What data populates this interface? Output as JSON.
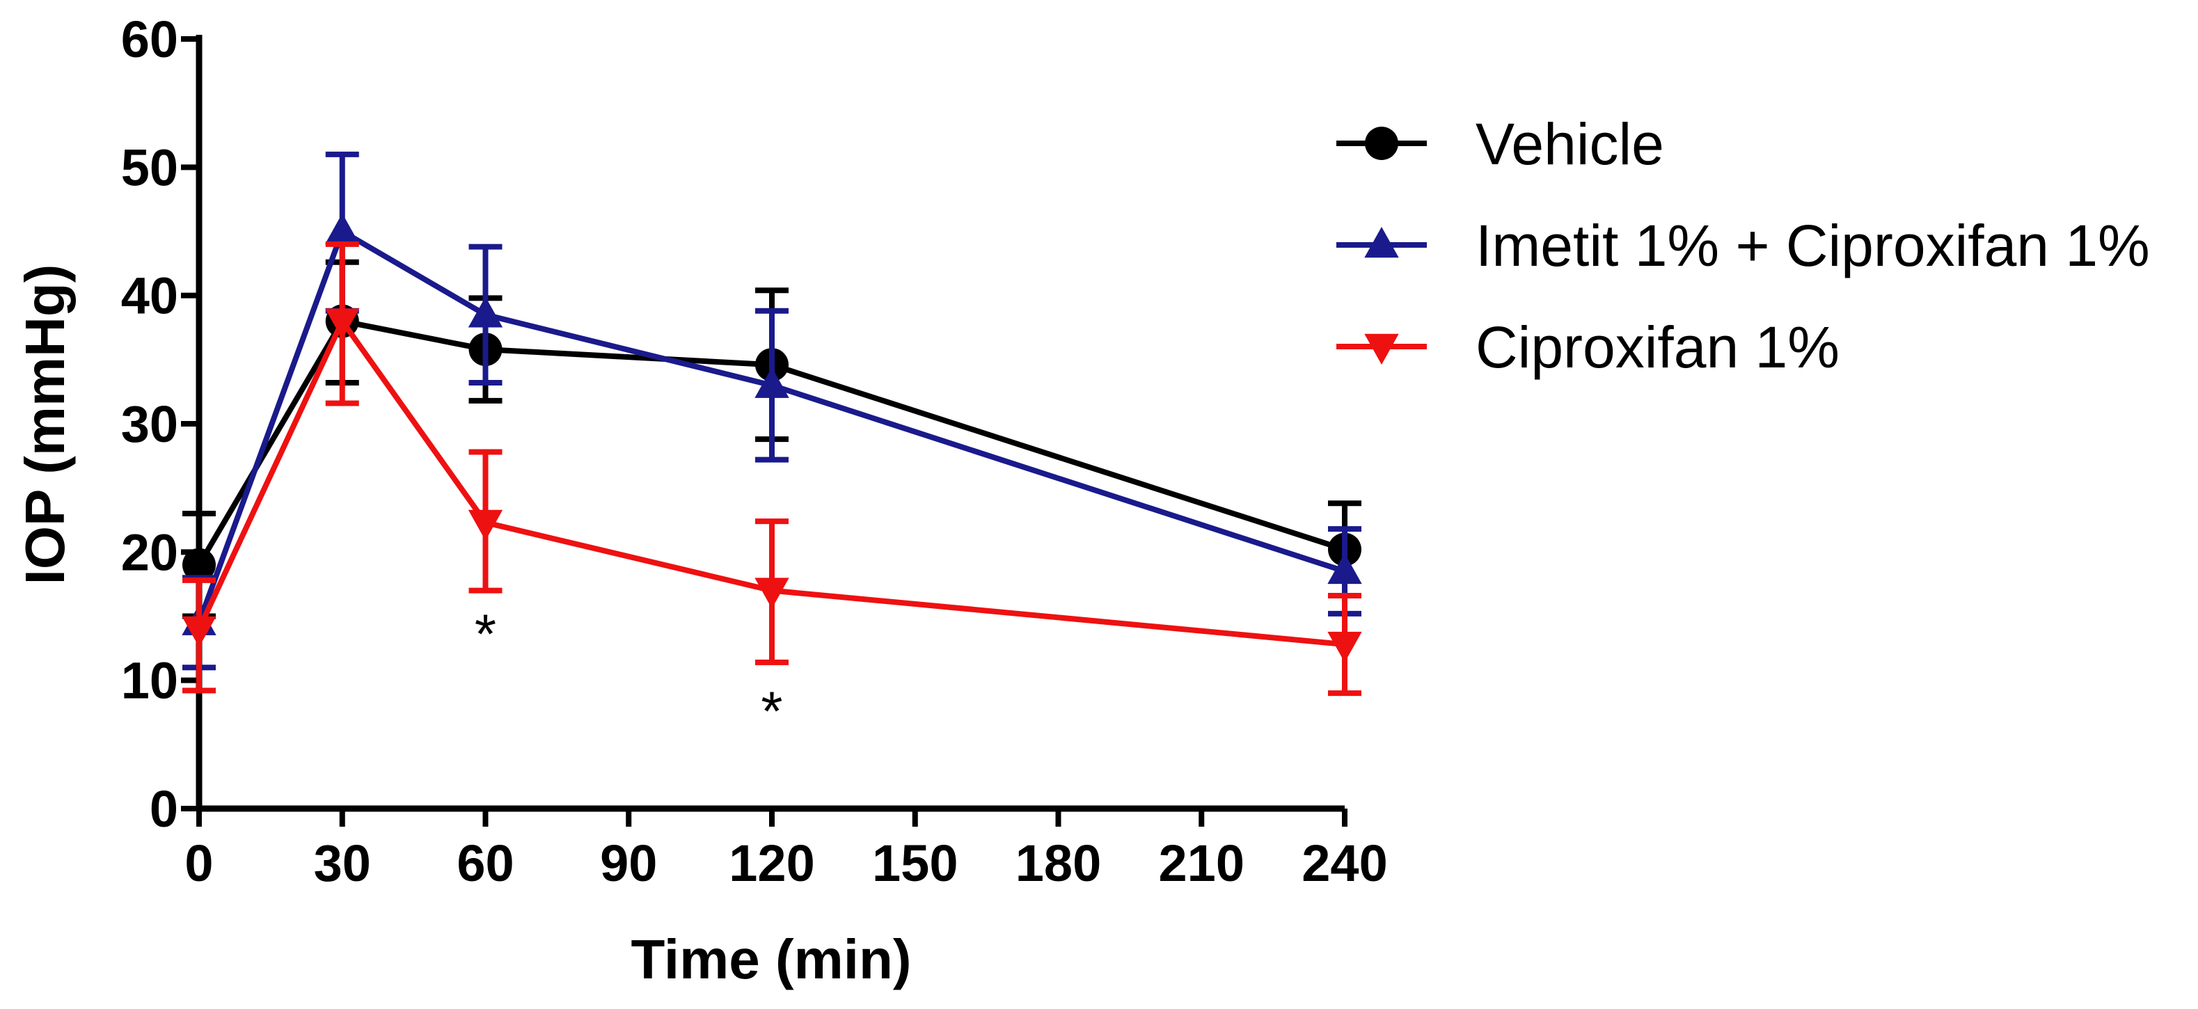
{
  "chart_data": {
    "type": "line",
    "title": "",
    "xlabel": "Time (min)",
    "ylabel": "IOP (mmHg)",
    "xlim": [
      0,
      240
    ],
    "ylim": [
      0,
      60
    ],
    "xticks": [
      0,
      30,
      60,
      90,
      120,
      150,
      180,
      210,
      240
    ],
    "yticks": [
      0,
      10,
      20,
      30,
      40,
      50,
      60
    ],
    "xtick_labels": [
      "0",
      "30",
      "60",
      "90",
      "120",
      "150",
      "180",
      "210",
      "240"
    ],
    "ytick_labels": [
      "0",
      "10",
      "20",
      "30",
      "40",
      "50",
      "60"
    ],
    "x": [
      0,
      30,
      60,
      120,
      240
    ],
    "legend_position": "top-right",
    "grid": false,
    "series": [
      {
        "name": "Vehicle",
        "color": "#000000",
        "marker": "circle",
        "values": [
          19,
          38,
          35.8,
          34.6,
          20.2
        ],
        "err_low": [
          15,
          33.2,
          31.8,
          28.8,
          16.6
        ],
        "err_high": [
          23,
          42.6,
          39.8,
          40.4,
          23.8
        ]
      },
      {
        "name": "Imetit 1% + Ciproxifan 1%",
        "color": "#1a1a8c",
        "marker": "triangle-up",
        "values": [
          14.5,
          45,
          38.5,
          33,
          18.5
        ],
        "err_low": [
          11,
          38.8,
          33.2,
          27.2,
          15.2
        ],
        "err_high": [
          18,
          51,
          43.8,
          38.8,
          21.8
        ]
      },
      {
        "name": "Ciproxifan 1%",
        "color": "#ee1111",
        "marker": "triangle-down",
        "values": [
          14,
          38,
          22.3,
          17,
          12.8
        ],
        "err_low": [
          9.2,
          31.6,
          17,
          11.4,
          9
        ],
        "err_high": [
          17.8,
          44,
          27.8,
          22.4,
          16.6
        ]
      }
    ],
    "annotations": [
      {
        "text": "*",
        "x": 60,
        "y": 14.5
      },
      {
        "text": "*",
        "x": 120,
        "y": 8.5
      }
    ]
  }
}
